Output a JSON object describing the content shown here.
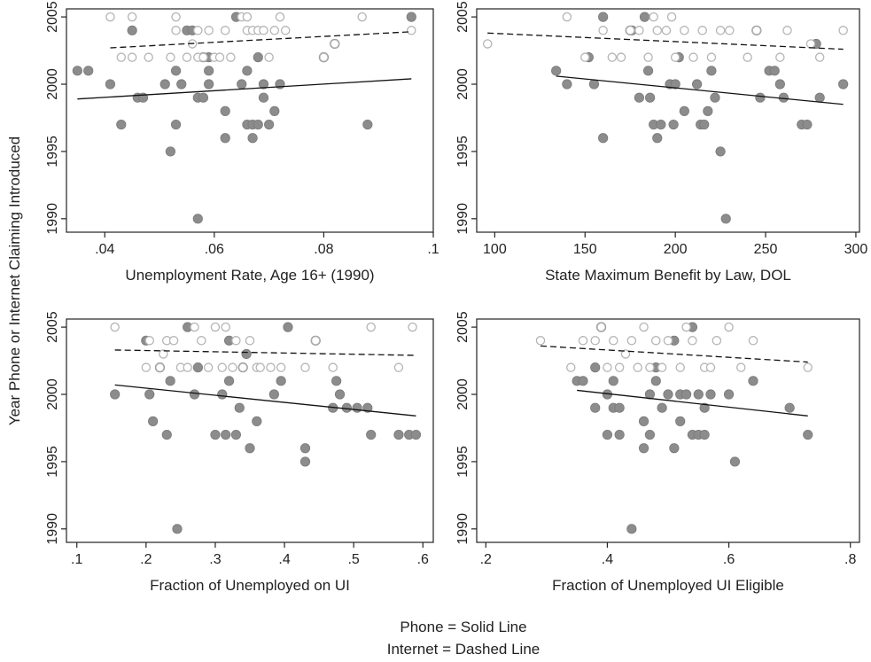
{
  "ylabel": "Year Phone or Internet Claiming Introduced",
  "legend": [
    "Phone = Solid Line",
    "Internet = Dashed Line"
  ],
  "colors": {
    "phone": "#8c8c8c",
    "internet": "#b4b4b4",
    "phone_line": "#111111",
    "internet_line": "#111111"
  },
  "chart_data": [
    {
      "type": "scatter",
      "xlabel": "Unemployment Rate, Age 16+ (1990)",
      "xlim": [
        0.033,
        0.1
      ],
      "ylim": [
        1989,
        2005.6
      ],
      "xticks": [
        0.04,
        0.06,
        0.08,
        0.1
      ],
      "xtick_labels": [
        ".04",
        ".06",
        ".08",
        ".1"
      ],
      "yticks": [
        1990,
        1995,
        2000,
        2005
      ],
      "ytick_labels": [
        "1990",
        "1995",
        "2000",
        "2005"
      ],
      "series": [
        {
          "name": "Phone",
          "marker": "filled",
          "x": [
            0.035,
            0.037,
            0.041,
            0.043,
            0.045,
            0.046,
            0.047,
            0.051,
            0.052,
            0.053,
            0.053,
            0.054,
            0.055,
            0.056,
            0.057,
            0.057,
            0.058,
            0.058,
            0.059,
            0.059,
            0.059,
            0.062,
            0.062,
            0.064,
            0.065,
            0.066,
            0.066,
            0.067,
            0.067,
            0.068,
            0.068,
            0.069,
            0.069,
            0.07,
            0.071,
            0.072,
            0.08,
            0.082,
            0.088,
            0.096
          ],
          "y": [
            2001,
            2001,
            2000,
            1997,
            2004,
            1999,
            1999,
            2000,
            1995,
            2001,
            1997,
            2000,
            2004,
            2004,
            1999,
            1990,
            2002,
            1999,
            2001,
            2000,
            2002,
            1996,
            1998,
            2005,
            2000,
            2001,
            1997,
            1997,
            1996,
            1997,
            2002,
            2000,
            1999,
            1997,
            1998,
            2000,
            2002,
            2003,
            1997,
            2005
          ]
        },
        {
          "name": "Internet",
          "marker": "hollow",
          "x": [
            0.041,
            0.043,
            0.045,
            0.045,
            0.048,
            0.052,
            0.053,
            0.053,
            0.055,
            0.056,
            0.057,
            0.057,
            0.058,
            0.059,
            0.06,
            0.061,
            0.062,
            0.063,
            0.065,
            0.066,
            0.066,
            0.067,
            0.068,
            0.069,
            0.07,
            0.071,
            0.072,
            0.073,
            0.08,
            0.082,
            0.087,
            0.096
          ],
          "y": [
            2005,
            2002,
            2002,
            2005,
            2002,
            2002,
            2004,
            2005,
            2002,
            2003,
            2002,
            2004,
            2002,
            2004,
            2002,
            2002,
            2004,
            2002,
            2005,
            2004,
            2005,
            2004,
            2004,
            2004,
            2002,
            2004,
            2005,
            2004,
            2002,
            2003,
            2005,
            2004
          ]
        }
      ],
      "fits": [
        {
          "name": "Phone",
          "style": "solid",
          "x": [
            0.035,
            0.096
          ],
          "y": [
            1998.9,
            2000.4
          ]
        },
        {
          "name": "Internet",
          "style": "dashed",
          "x": [
            0.041,
            0.096
          ],
          "y": [
            2002.7,
            2003.9
          ]
        }
      ]
    },
    {
      "type": "scatter",
      "xlabel": "State Maximum Benefit by Law, DOL",
      "xlim": [
        90,
        302
      ],
      "ylim": [
        1989,
        2005.6
      ],
      "xticks": [
        100,
        150,
        200,
        250,
        300
      ],
      "xtick_labels": [
        "100",
        "150",
        "200",
        "250",
        "300"
      ],
      "yticks": [
        1990,
        1995,
        2000,
        2005
      ],
      "ytick_labels": [
        "1990",
        "1995",
        "2000",
        "2005"
      ],
      "series": [
        {
          "name": "Phone",
          "marker": "filled",
          "x": [
            134,
            140,
            152,
            155,
            160,
            160,
            175,
            176,
            180,
            183,
            185,
            186,
            188,
            190,
            192,
            197,
            199,
            200,
            202,
            205,
            212,
            214,
            216,
            218,
            220,
            222,
            225,
            228,
            245,
            247,
            252,
            255,
            258,
            260,
            270,
            273,
            278,
            280,
            293
          ],
          "y": [
            2001,
            2000,
            2002,
            2000,
            1996,
            2005,
            2004,
            2004,
            1999,
            2005,
            2001,
            1999,
            1997,
            1996,
            1997,
            2000,
            1997,
            2000,
            2002,
            1998,
            2000,
            1997,
            1997,
            1998,
            2001,
            1999,
            1995,
            1990,
            2004,
            1999,
            2001,
            2001,
            2000,
            1999,
            1997,
            1997,
            2003,
            1999,
            2000
          ]
        },
        {
          "name": "Internet",
          "marker": "hollow",
          "x": [
            96,
            140,
            150,
            160,
            165,
            170,
            175,
            180,
            185,
            188,
            190,
            195,
            198,
            200,
            205,
            210,
            215,
            220,
            225,
            230,
            240,
            245,
            258,
            262,
            275,
            280,
            293
          ],
          "y": [
            2003,
            2005,
            2002,
            2004,
            2002,
            2002,
            2004,
            2004,
            2002,
            2005,
            2004,
            2004,
            2005,
            2002,
            2004,
            2002,
            2004,
            2002,
            2004,
            2004,
            2002,
            2004,
            2002,
            2004,
            2003,
            2002,
            2004
          ]
        }
      ],
      "fits": [
        {
          "name": "Phone",
          "style": "solid",
          "x": [
            134,
            293
          ],
          "y": [
            2000.6,
            1998.5
          ]
        },
        {
          "name": "Internet",
          "style": "dashed",
          "x": [
            96,
            293
          ],
          "y": [
            2003.8,
            2002.6
          ]
        }
      ]
    },
    {
      "type": "scatter",
      "xlabel": "Fraction of Unemployed on UI",
      "xlim": [
        0.085,
        0.615
      ],
      "ylim": [
        1989,
        2005.6
      ],
      "xticks": [
        0.1,
        0.2,
        0.3,
        0.4,
        0.5,
        0.6
      ],
      "xtick_labels": [
        ".1",
        ".2",
        ".3",
        ".4",
        ".5",
        ".6"
      ],
      "yticks": [
        1990,
        1995,
        2000,
        2005
      ],
      "ytick_labels": [
        "1990",
        "1995",
        "2000",
        "2005"
      ],
      "series": [
        {
          "name": "Phone",
          "marker": "filled",
          "x": [
            0.155,
            0.2,
            0.205,
            0.21,
            0.22,
            0.23,
            0.235,
            0.245,
            0.26,
            0.27,
            0.275,
            0.3,
            0.31,
            0.315,
            0.32,
            0.32,
            0.33,
            0.335,
            0.34,
            0.345,
            0.35,
            0.36,
            0.385,
            0.395,
            0.405,
            0.43,
            0.43,
            0.445,
            0.47,
            0.475,
            0.48,
            0.49,
            0.505,
            0.52,
            0.525,
            0.565,
            0.58,
            0.59
          ],
          "y": [
            2000,
            2004,
            2000,
            1998,
            2002,
            1997,
            2001,
            1990,
            2005,
            2000,
            2002,
            1997,
            2000,
            1997,
            2001,
            2004,
            1997,
            1999,
            2002,
            2003,
            1996,
            1998,
            2000,
            2001,
            2005,
            1996,
            1995,
            2004,
            1999,
            2001,
            2000,
            1999,
            1999,
            1999,
            1997,
            1997,
            1997,
            1997
          ]
        },
        {
          "name": "Internet",
          "marker": "hollow",
          "x": [
            0.155,
            0.2,
            0.205,
            0.22,
            0.225,
            0.23,
            0.24,
            0.25,
            0.26,
            0.27,
            0.28,
            0.29,
            0.3,
            0.31,
            0.315,
            0.325,
            0.33,
            0.34,
            0.35,
            0.36,
            0.365,
            0.38,
            0.395,
            0.43,
            0.445,
            0.47,
            0.525,
            0.565,
            0.585
          ],
          "y": [
            2005,
            2002,
            2004,
            2002,
            2003,
            2004,
            2004,
            2002,
            2002,
            2005,
            2004,
            2002,
            2005,
            2002,
            2005,
            2002,
            2004,
            2002,
            2004,
            2002,
            2002,
            2002,
            2002,
            2002,
            2004,
            2002,
            2005,
            2002,
            2005
          ]
        }
      ],
      "fits": [
        {
          "name": "Phone",
          "style": "solid",
          "x": [
            0.155,
            0.59
          ],
          "y": [
            2000.7,
            1998.4
          ]
        },
        {
          "name": "Internet",
          "style": "dashed",
          "x": [
            0.155,
            0.59
          ],
          "y": [
            2003.3,
            2002.9
          ]
        }
      ]
    },
    {
      "type": "scatter",
      "xlabel": "Fraction of Unemployed UI Eligible",
      "xlim": [
        0.185,
        0.815
      ],
      "ylim": [
        1989,
        2005.6
      ],
      "xticks": [
        0.2,
        0.4,
        0.6,
        0.8
      ],
      "xtick_labels": [
        ".2",
        ".4",
        ".6",
        ".8"
      ],
      "yticks": [
        1990,
        1995,
        2000,
        2005
      ],
      "ytick_labels": [
        "1990",
        "1995",
        "2000",
        "2005"
      ],
      "series": [
        {
          "name": "Phone",
          "marker": "filled",
          "x": [
            0.35,
            0.36,
            0.38,
            0.38,
            0.39,
            0.4,
            0.4,
            0.41,
            0.41,
            0.42,
            0.42,
            0.44,
            0.46,
            0.46,
            0.47,
            0.47,
            0.48,
            0.48,
            0.49,
            0.5,
            0.51,
            0.51,
            0.52,
            0.52,
            0.53,
            0.54,
            0.54,
            0.55,
            0.55,
            0.56,
            0.56,
            0.57,
            0.6,
            0.61,
            0.64,
            0.7,
            0.73
          ],
          "y": [
            2001,
            2001,
            2002,
            1999,
            2005,
            2000,
            1997,
            2001,
            1999,
            1997,
            1999,
            1990,
            1996,
            1998,
            1997,
            2000,
            2002,
            2001,
            1999,
            2000,
            1996,
            2004,
            2000,
            1998,
            2000,
            1997,
            2005,
            1997,
            2000,
            1999,
            1997,
            2000,
            2000,
            1995,
            2001,
            1999,
            1997
          ]
        },
        {
          "name": "Internet",
          "marker": "hollow",
          "x": [
            0.29,
            0.34,
            0.36,
            0.38,
            0.39,
            0.4,
            0.41,
            0.42,
            0.43,
            0.44,
            0.45,
            0.46,
            0.47,
            0.48,
            0.49,
            0.5,
            0.52,
            0.53,
            0.54,
            0.56,
            0.57,
            0.58,
            0.6,
            0.62,
            0.64,
            0.73
          ],
          "y": [
            2004,
            2002,
            2004,
            2004,
            2005,
            2002,
            2004,
            2002,
            2003,
            2004,
            2002,
            2005,
            2002,
            2004,
            2002,
            2004,
            2002,
            2005,
            2004,
            2002,
            2002,
            2004,
            2005,
            2002,
            2004,
            2002
          ]
        }
      ],
      "fits": [
        {
          "name": "Phone",
          "style": "solid",
          "x": [
            0.35,
            0.73
          ],
          "y": [
            2000.3,
            1998.4
          ]
        },
        {
          "name": "Internet",
          "style": "dashed",
          "x": [
            0.29,
            0.73
          ],
          "y": [
            2003.6,
            2002.4
          ]
        }
      ]
    }
  ]
}
